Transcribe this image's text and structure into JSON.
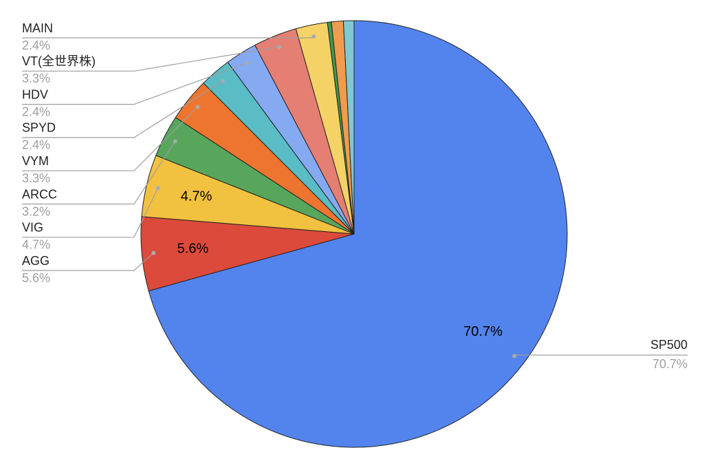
{
  "chart_data": {
    "type": "pie",
    "categories": [
      "SP500",
      "AGG",
      "VIG",
      "ARCC",
      "VYM",
      "SPYD",
      "HDV",
      "VT(全世界株)",
      "MAIN",
      null,
      null,
      null
    ],
    "values": [
      70.7,
      5.6,
      4.7,
      3.2,
      3.3,
      2.4,
      2.4,
      3.3,
      2.4,
      0.3,
      0.9,
      0.8
    ],
    "value_labels": [
      "70.7%",
      "5.6%",
      "4.7%",
      "3.2%",
      "3.3%",
      "2.4%",
      "2.4%",
      "3.3%",
      "2.4%",
      null,
      null,
      null
    ],
    "colors": [
      "#5384ed",
      "#db4a3b",
      "#f2c13f",
      "#57a65c",
      "#ee7530",
      "#5abcc4",
      "#86aaf2",
      "#e57f74",
      "#f5d266",
      "#3f9a4b",
      "#f19b4e",
      "#81c9d0"
    ]
  }
}
